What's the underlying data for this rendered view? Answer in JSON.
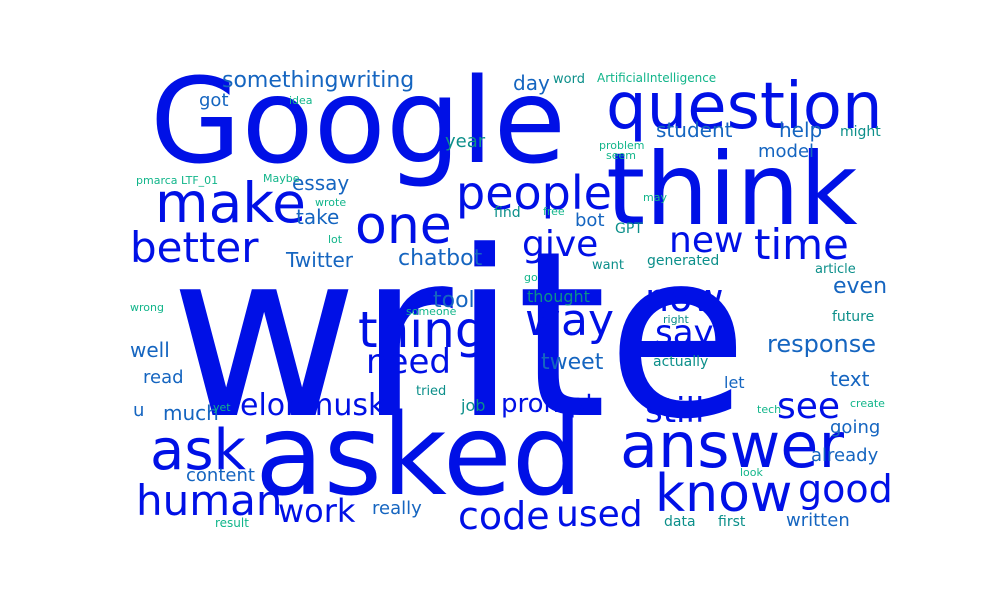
{
  "wordcloud": {
    "colors": {
      "blue": "#0010e6",
      "mid": "#1565c0",
      "teal": "#0c8f8a",
      "green": "#11b58a"
    },
    "words": [
      {
        "text": "write",
        "color": "blue"
      },
      {
        "text": "asked",
        "color": "blue"
      },
      {
        "text": "Google",
        "color": "blue"
      },
      {
        "text": "think",
        "color": "blue"
      },
      {
        "text": "question",
        "color": "blue"
      },
      {
        "text": "answer",
        "color": "blue"
      },
      {
        "text": "know",
        "color": "blue"
      },
      {
        "text": "ask",
        "color": "blue"
      },
      {
        "text": "make",
        "color": "blue"
      },
      {
        "text": "one",
        "color": "blue"
      },
      {
        "text": "people",
        "color": "blue"
      },
      {
        "text": "thing",
        "color": "blue"
      },
      {
        "text": "better",
        "color": "blue"
      },
      {
        "text": "time",
        "color": "blue"
      },
      {
        "text": "human",
        "color": "blue"
      },
      {
        "text": "way",
        "color": "blue"
      },
      {
        "text": "new",
        "color": "blue"
      },
      {
        "text": "give",
        "color": "blue"
      },
      {
        "text": "now",
        "color": "blue"
      },
      {
        "text": "see",
        "color": "blue"
      },
      {
        "text": "still",
        "color": "blue"
      },
      {
        "text": "code",
        "color": "blue"
      },
      {
        "text": "used",
        "color": "blue"
      },
      {
        "text": "good",
        "color": "blue"
      },
      {
        "text": "work",
        "color": "blue"
      },
      {
        "text": "need",
        "color": "blue"
      },
      {
        "text": "elonmusk",
        "color": "blue"
      },
      {
        "text": "say",
        "color": "blue"
      },
      {
        "text": "prompt",
        "color": "blue"
      },
      {
        "text": "response",
        "color": "mid"
      },
      {
        "text": "somethingwriting",
        "color": "mid"
      },
      {
        "text": "Twitter",
        "color": "mid"
      },
      {
        "text": "chatbot",
        "color": "mid"
      },
      {
        "text": "tweet",
        "color": "mid"
      },
      {
        "text": "essay",
        "color": "mid"
      },
      {
        "text": "take",
        "color": "mid"
      },
      {
        "text": "student",
        "color": "mid"
      },
      {
        "text": "help",
        "color": "mid"
      },
      {
        "text": "model",
        "color": "mid"
      },
      {
        "text": "tool",
        "color": "mid"
      },
      {
        "text": "even",
        "color": "mid"
      },
      {
        "text": "well",
        "color": "mid"
      },
      {
        "text": "content",
        "color": "mid"
      },
      {
        "text": "much",
        "color": "mid"
      },
      {
        "text": "going",
        "color": "mid"
      },
      {
        "text": "text",
        "color": "mid"
      },
      {
        "text": "written",
        "color": "mid"
      },
      {
        "text": "already",
        "color": "mid"
      },
      {
        "text": "read",
        "color": "mid"
      },
      {
        "text": "really",
        "color": "mid"
      },
      {
        "text": "day",
        "color": "mid"
      },
      {
        "text": "got",
        "color": "mid"
      },
      {
        "text": "bot",
        "color": "mid"
      },
      {
        "text": "u",
        "color": "mid"
      },
      {
        "text": "let",
        "color": "mid"
      },
      {
        "text": "thought",
        "color": "teal"
      },
      {
        "text": "job",
        "color": "teal"
      },
      {
        "text": "year",
        "color": "teal"
      },
      {
        "text": "generated",
        "color": "teal"
      },
      {
        "text": "actually",
        "color": "teal"
      },
      {
        "text": "article",
        "color": "teal"
      },
      {
        "text": "future",
        "color": "teal"
      },
      {
        "text": "find",
        "color": "teal"
      },
      {
        "text": "want",
        "color": "teal"
      },
      {
        "text": "data",
        "color": "teal"
      },
      {
        "text": "first",
        "color": "teal"
      },
      {
        "text": "tried",
        "color": "teal"
      },
      {
        "text": "might",
        "color": "teal"
      },
      {
        "text": "word",
        "color": "teal"
      },
      {
        "text": "GPT",
        "color": "teal"
      },
      {
        "text": "right",
        "color": "teal"
      },
      {
        "text": "look",
        "color": "green"
      },
      {
        "text": "result",
        "color": "green"
      },
      {
        "text": "yet",
        "color": "green"
      },
      {
        "text": "tech",
        "color": "green"
      },
      {
        "text": "create",
        "color": "green"
      },
      {
        "text": "ArtificialIntelligence",
        "color": "green"
      },
      {
        "text": "idea",
        "color": "green"
      },
      {
        "text": "problem",
        "color": "green"
      },
      {
        "text": "seem",
        "color": "green"
      },
      {
        "text": "pmarca LTF_01",
        "color": "green"
      },
      {
        "text": "Maybe",
        "color": "green"
      },
      {
        "text": "wrote",
        "color": "green"
      },
      {
        "text": "free",
        "color": "green"
      },
      {
        "text": "may",
        "color": "green"
      },
      {
        "text": "lot",
        "color": "green"
      },
      {
        "text": "go",
        "color": "green"
      },
      {
        "text": "someone",
        "color": "green"
      },
      {
        "text": "wrong",
        "color": "green"
      }
    ]
  }
}
